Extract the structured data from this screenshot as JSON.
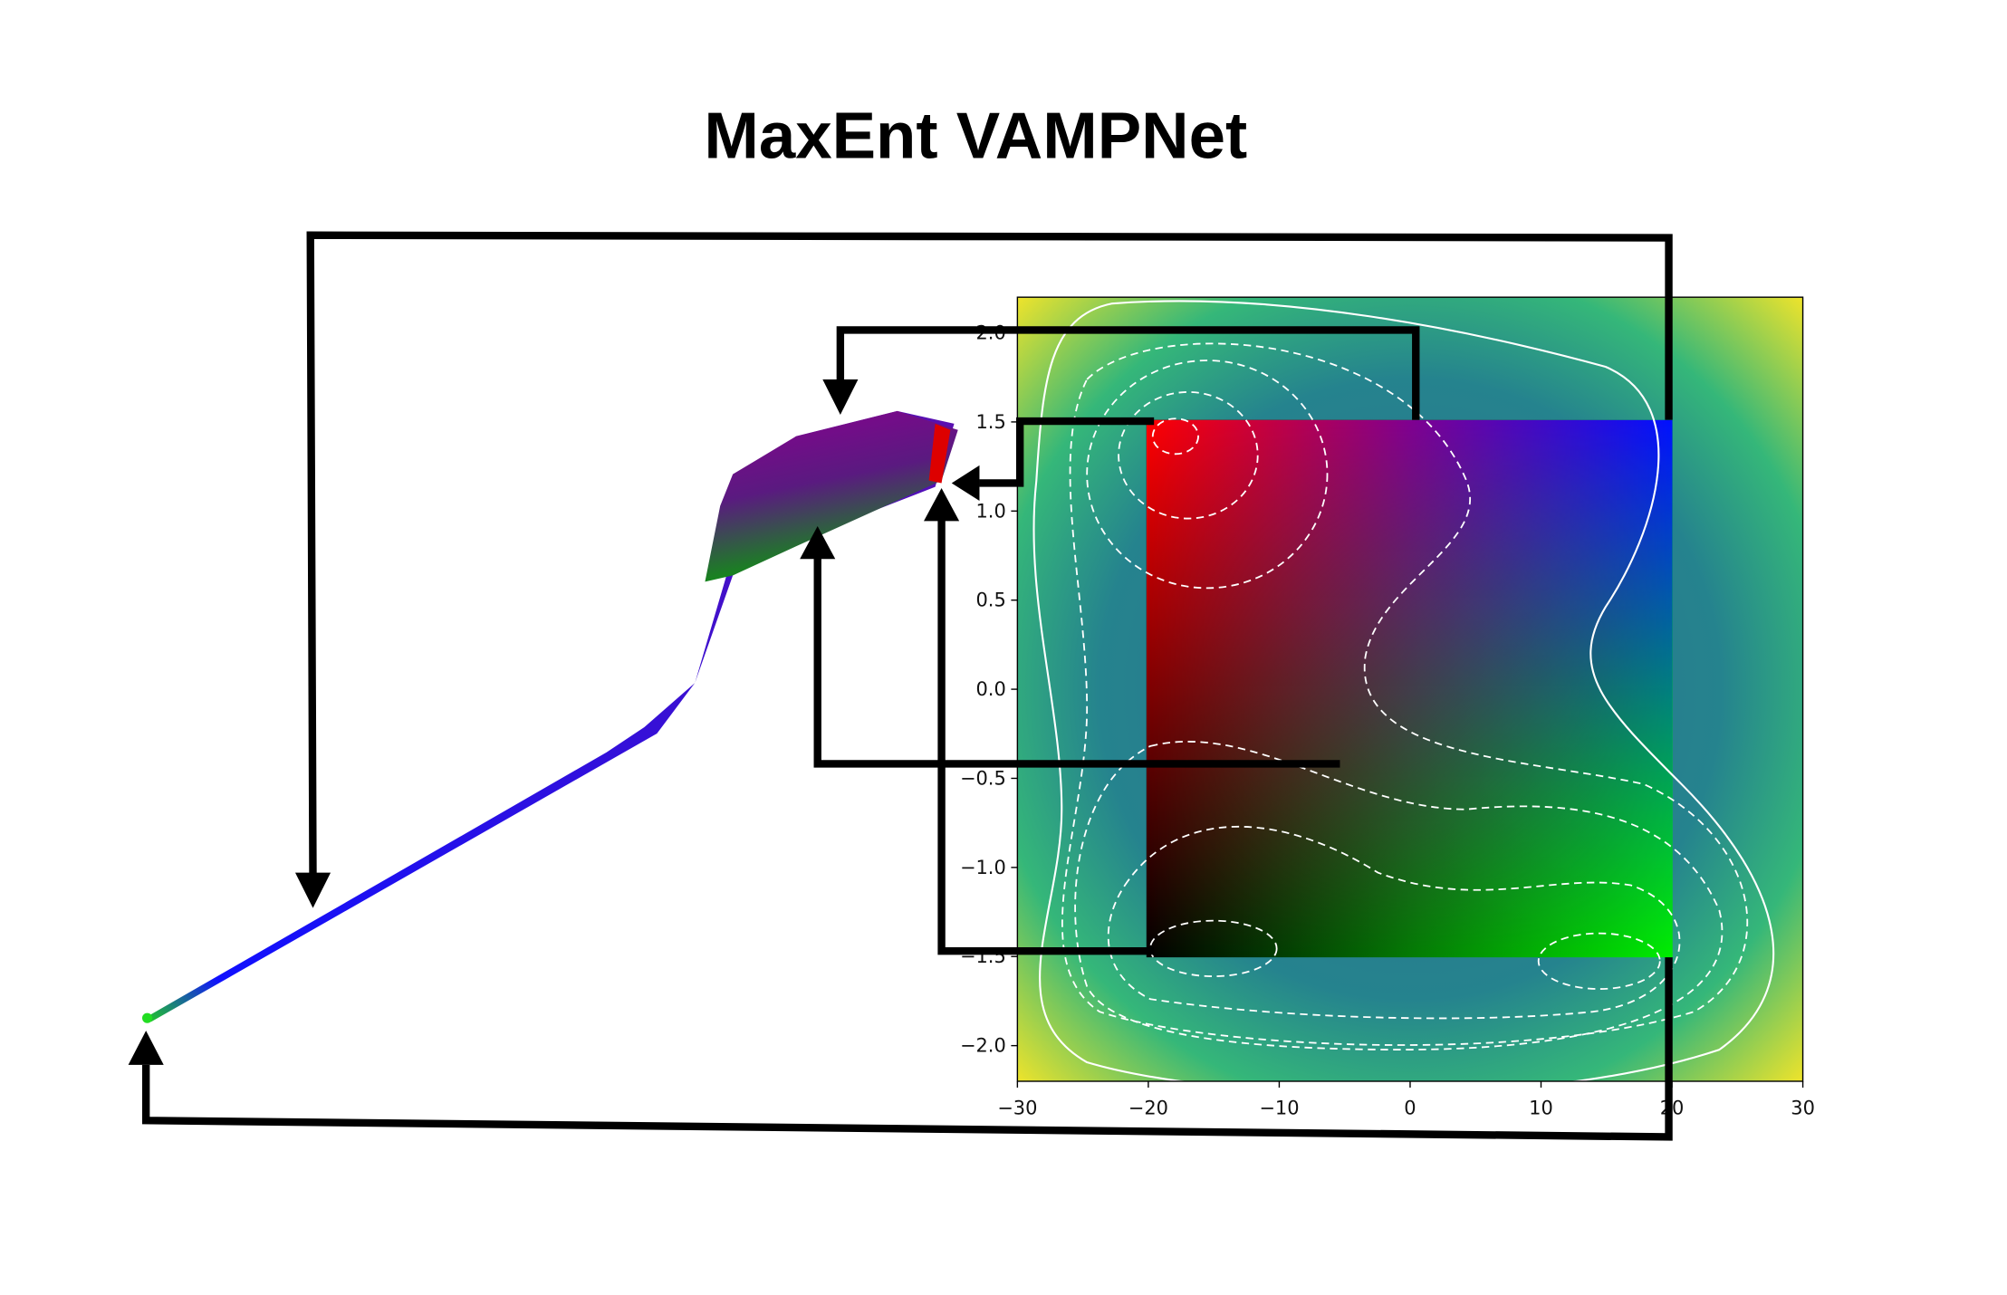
{
  "title": "MaxEnt VAMPNet",
  "plot": {
    "xlim": [
      -30,
      30
    ],
    "ylim": [
      -2.2,
      2.2
    ],
    "xticks": [
      {
        "value": -30,
        "label": "−30"
      },
      {
        "value": -20,
        "label": "−20"
      },
      {
        "value": -10,
        "label": "−10"
      },
      0,
      10,
      20,
      30
    ],
    "yticks": [
      {
        "value": 2,
        "label": "2.0"
      },
      {
        "value": 1.5,
        "label": "1.5"
      },
      {
        "value": 1,
        "label": "1.0"
      },
      {
        "value": 0.5,
        "label": "0.5"
      },
      {
        "value": 0,
        "label": "0.0"
      },
      {
        "value": -0.5,
        "label": "−0.5"
      },
      {
        "value": -1,
        "label": "−1.0"
      },
      {
        "value": -1.5,
        "label": "−1.5"
      },
      {
        "value": -2,
        "label": "−2.0"
      }
    ]
  }
}
